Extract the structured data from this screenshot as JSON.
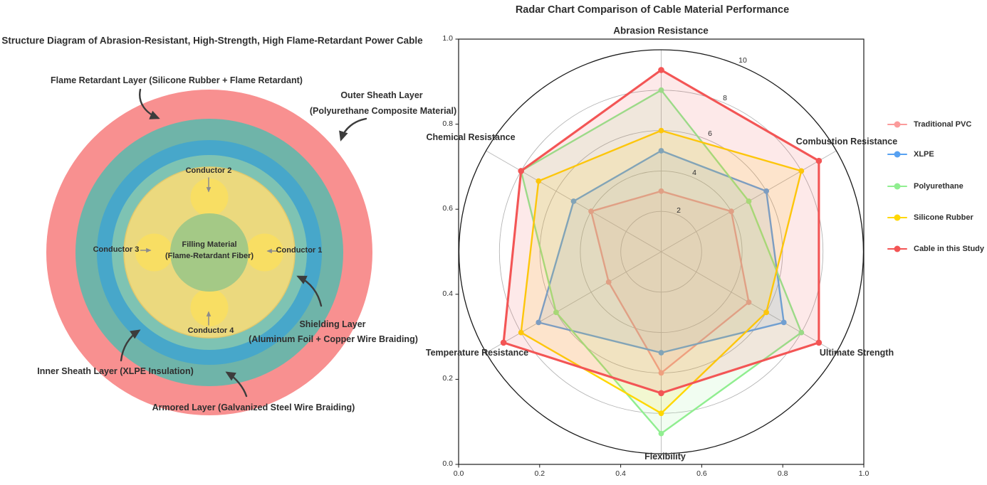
{
  "left_diagram": {
    "title": "Structure Diagram of Abrasion-Resistant, High-Strength, High Flame-Retardant Power Cable",
    "layer_labels": {
      "flame_retardant": "Flame Retardant Layer (Silicone Rubber + Flame Retardant)",
      "outer_sheath_1": "Outer Sheath Layer",
      "outer_sheath_2": "(Polyurethane Composite Material)",
      "shielding_1": "Shielding Layer",
      "shielding_2": "(Aluminum Foil + Copper Wire Braiding)",
      "inner_sheath": "Inner Sheath Layer (XLPE Insulation)",
      "armored": "Armored Layer (Galvanized Steel Wire Braiding)"
    },
    "conductor_labels": {
      "c1": "Conductor 1",
      "c2": "Conductor 2",
      "c3": "Conductor 3",
      "c4": "Conductor 4"
    },
    "filling_label_1": "Filling Material",
    "filling_label_2": "(Flame-Retardant Fiber)",
    "layer_colors": {
      "ring_outer": "#F89090",
      "ring_2": "#6FB4A9",
      "ring_3": "#47A7CA",
      "ring_4": "#7EC3B3",
      "inner_circle": "#EBD97E",
      "conductor": "#F8DE63",
      "filling_center": "#9CC687"
    },
    "arrow_color": "#3c3c3c",
    "small_arrow_color": "#8c8c8c"
  },
  "radar": {
    "title": "Radar Chart Comparison of Cable Material Performance",
    "ring_labels": [
      "2",
      "4",
      "6",
      "8",
      "10"
    ],
    "x_ticks": [
      "0.0",
      "0.2",
      "0.4",
      "0.6",
      "0.8",
      "1.0"
    ],
    "y_ticks": [
      "1.0",
      "0.8",
      "0.6",
      "0.4",
      "0.2",
      "0.0"
    ]
  },
  "chart_data": {
    "type": "radar",
    "title": "Radar Chart Comparison of Cable Material Performance",
    "categories": [
      "Abrasion Resistance",
      "Combustion Resistance",
      "Ultimate Strength",
      "Flexibility",
      "Temperature Resistance",
      "Chemical Resistance"
    ],
    "scale_max": 10,
    "ring_values": [
      2,
      4,
      6,
      8,
      10
    ],
    "grid": true,
    "legend_position": "right",
    "series": [
      {
        "name": "Traditional PVC",
        "color": "#FB9B9B",
        "values": [
          3,
          4,
          5,
          6,
          3,
          4
        ]
      },
      {
        "name": "XLPE",
        "color": "#57A1F1",
        "values": [
          5,
          6,
          7,
          5,
          7,
          5
        ]
      },
      {
        "name": "Polyurethane",
        "color": "#90EE90",
        "values": [
          8,
          5,
          8,
          9,
          6,
          8
        ]
      },
      {
        "name": "Silicone Rubber",
        "color": "#FFD700",
        "values": [
          6,
          8,
          6,
          8,
          8,
          7
        ]
      },
      {
        "name": "Cable in this Study",
        "color": "#F35555",
        "values": [
          9,
          9,
          9,
          7,
          9,
          8
        ]
      }
    ]
  }
}
